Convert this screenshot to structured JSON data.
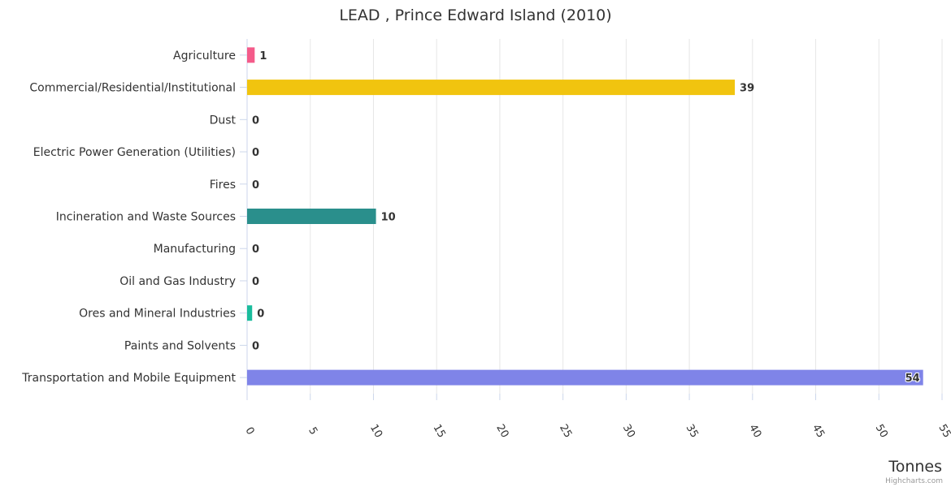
{
  "chart_data": {
    "type": "bar",
    "orientation": "horizontal",
    "title": "LEAD , Prince Edward Island (2010)",
    "xlabel": "Tonnes",
    "ylabel": "",
    "xlim": [
      0,
      55
    ],
    "ticks": [
      "0",
      "5",
      "10",
      "15",
      "20",
      "25",
      "30",
      "35",
      "40",
      "45",
      "50",
      "55"
    ],
    "grid": true,
    "categories": [
      "Agriculture",
      "Commercial/Residential/Institutional",
      "Dust",
      "Electric Power Generation (Utilities)",
      "Fires",
      "Incineration and Waste Sources",
      "Manufacturing",
      "Oil and Gas Industry",
      "Ores and Mineral Industries",
      "Paints and Solvents",
      "Transportation and Mobile Equipment"
    ],
    "values": [
      0.6,
      38.6,
      0,
      0,
      0,
      10.2,
      0,
      0,
      0.4,
      0,
      53.5
    ],
    "labels": [
      "1",
      "39",
      "0",
      "0",
      "0",
      "10",
      "0",
      "0",
      "0",
      "0",
      "54"
    ],
    "colors": [
      "#f45b8a",
      "#f1c40f",
      "#7cb5ec",
      "#7cb5ec",
      "#7cb5ec",
      "#2a8f8c",
      "#7cb5ec",
      "#7cb5ec",
      "#1abc9c",
      "#7cb5ec",
      "#7f84e8"
    ]
  },
  "credits": "Highcharts.com"
}
